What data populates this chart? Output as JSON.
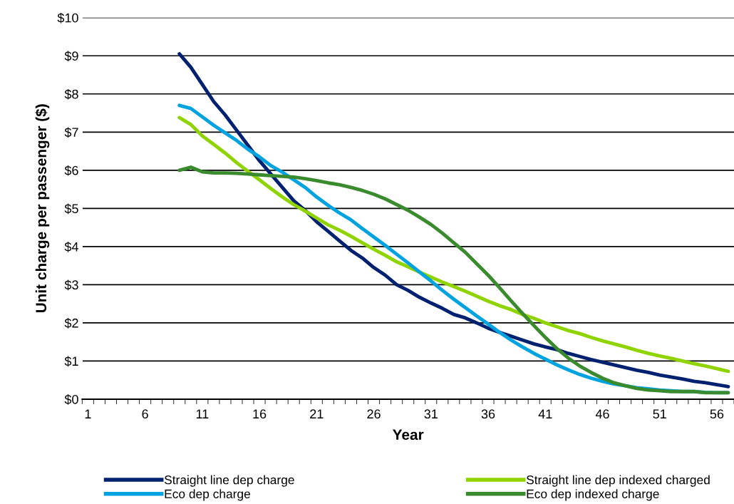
{
  "chart_data": {
    "type": "line",
    "xlabel": "Year",
    "ylabel": "Unit charge per passenger ($)",
    "categories": [
      "1",
      null,
      null,
      null,
      null,
      "6",
      null,
      null,
      null,
      null,
      "11",
      null,
      null,
      null,
      null,
      "16",
      null,
      null,
      null,
      null,
      "21",
      null,
      null,
      null,
      null,
      "26",
      null,
      null,
      null,
      null,
      "31",
      null,
      null,
      null,
      null,
      "36",
      null,
      null,
      null,
      null,
      "41",
      null,
      null,
      null,
      null,
      "46",
      null,
      null,
      null,
      null,
      "51",
      null,
      null,
      null,
      null,
      "56",
      null
    ],
    "series": [
      {
        "name": "Straight line dep charge",
        "color": "#002070",
        "values": [
          null,
          null,
          null,
          null,
          null,
          null,
          null,
          null,
          9.05,
          8.7,
          8.25,
          7.8,
          7.45,
          7.05,
          6.65,
          6.25,
          5.9,
          5.55,
          5.2,
          4.95,
          4.65,
          4.4,
          4.15,
          3.9,
          3.7,
          3.45,
          3.25,
          3.0,
          2.85,
          2.67,
          2.52,
          2.38,
          2.22,
          2.13,
          2.0,
          1.86,
          1.75,
          1.65,
          1.55,
          1.45,
          1.37,
          1.3,
          1.2,
          1.12,
          1.04,
          0.97,
          0.9,
          0.83,
          0.76,
          0.7,
          0.63,
          0.58,
          0.53,
          0.47,
          0.43,
          0.38,
          0.33
        ]
      },
      {
        "name": "Straight line dep indexed charged",
        "color": "#8fd400",
        "values": [
          null,
          null,
          null,
          null,
          null,
          null,
          null,
          null,
          7.38,
          7.2,
          6.9,
          6.68,
          6.45,
          6.2,
          5.97,
          5.75,
          5.52,
          5.3,
          5.1,
          4.93,
          4.75,
          4.57,
          4.43,
          4.27,
          4.1,
          3.93,
          3.77,
          3.6,
          3.47,
          3.33,
          3.2,
          3.07,
          2.95,
          2.83,
          2.7,
          2.57,
          2.45,
          2.35,
          2.22,
          2.12,
          2.0,
          1.9,
          1.8,
          1.72,
          1.62,
          1.53,
          1.45,
          1.37,
          1.28,
          1.2,
          1.13,
          1.07,
          1.0,
          0.93,
          0.87,
          0.8,
          0.73
        ]
      },
      {
        "name": "Eco dep charge",
        "color": "#00a3e0",
        "values": [
          null,
          null,
          null,
          null,
          null,
          null,
          null,
          null,
          7.7,
          7.62,
          7.4,
          7.18,
          6.98,
          6.78,
          6.55,
          6.35,
          6.12,
          5.95,
          5.75,
          5.55,
          5.3,
          5.08,
          4.88,
          4.7,
          4.47,
          4.25,
          4.03,
          3.8,
          3.57,
          3.33,
          3.1,
          2.85,
          2.62,
          2.4,
          2.18,
          1.97,
          1.75,
          1.55,
          1.37,
          1.2,
          1.05,
          0.9,
          0.77,
          0.65,
          0.55,
          0.47,
          0.4,
          0.35,
          0.3,
          0.27,
          0.24,
          0.22,
          0.2,
          0.2,
          0.18,
          0.17,
          0.17
        ]
      },
      {
        "name": "Eco dep indexed charge",
        "color": "#3a8a2e",
        "values": [
          null,
          null,
          null,
          null,
          null,
          null,
          null,
          null,
          6.0,
          6.08,
          5.96,
          5.93,
          5.93,
          5.92,
          5.9,
          5.88,
          5.86,
          5.84,
          5.82,
          5.78,
          5.73,
          5.67,
          5.62,
          5.55,
          5.47,
          5.37,
          5.25,
          5.1,
          4.95,
          4.77,
          4.58,
          4.35,
          4.1,
          3.85,
          3.55,
          3.25,
          2.92,
          2.58,
          2.25,
          1.93,
          1.62,
          1.33,
          1.08,
          0.87,
          0.7,
          0.55,
          0.43,
          0.35,
          0.28,
          0.24,
          0.22,
          0.2,
          0.2,
          0.2,
          0.17,
          0.17,
          0.17
        ]
      }
    ],
    "ylim": [
      0,
      10
    ],
    "yticks": [
      {
        "value": 0,
        "label": "$0"
      },
      {
        "value": 1,
        "label": "$1"
      },
      {
        "value": 2,
        "label": "$2"
      },
      {
        "value": 3,
        "label": "$3"
      },
      {
        "value": 4,
        "label": "$4"
      },
      {
        "value": 5,
        "label": "$5"
      },
      {
        "value": 6,
        "label": "$6"
      },
      {
        "value": 7,
        "label": "$7"
      },
      {
        "value": 8,
        "label": "$8"
      },
      {
        "value": 9,
        "label": "$9"
      },
      {
        "value": 10,
        "label": "$10"
      }
    ],
    "grid": "y",
    "legend": "bottom",
    "marker": "none",
    "line_style": "solid"
  }
}
